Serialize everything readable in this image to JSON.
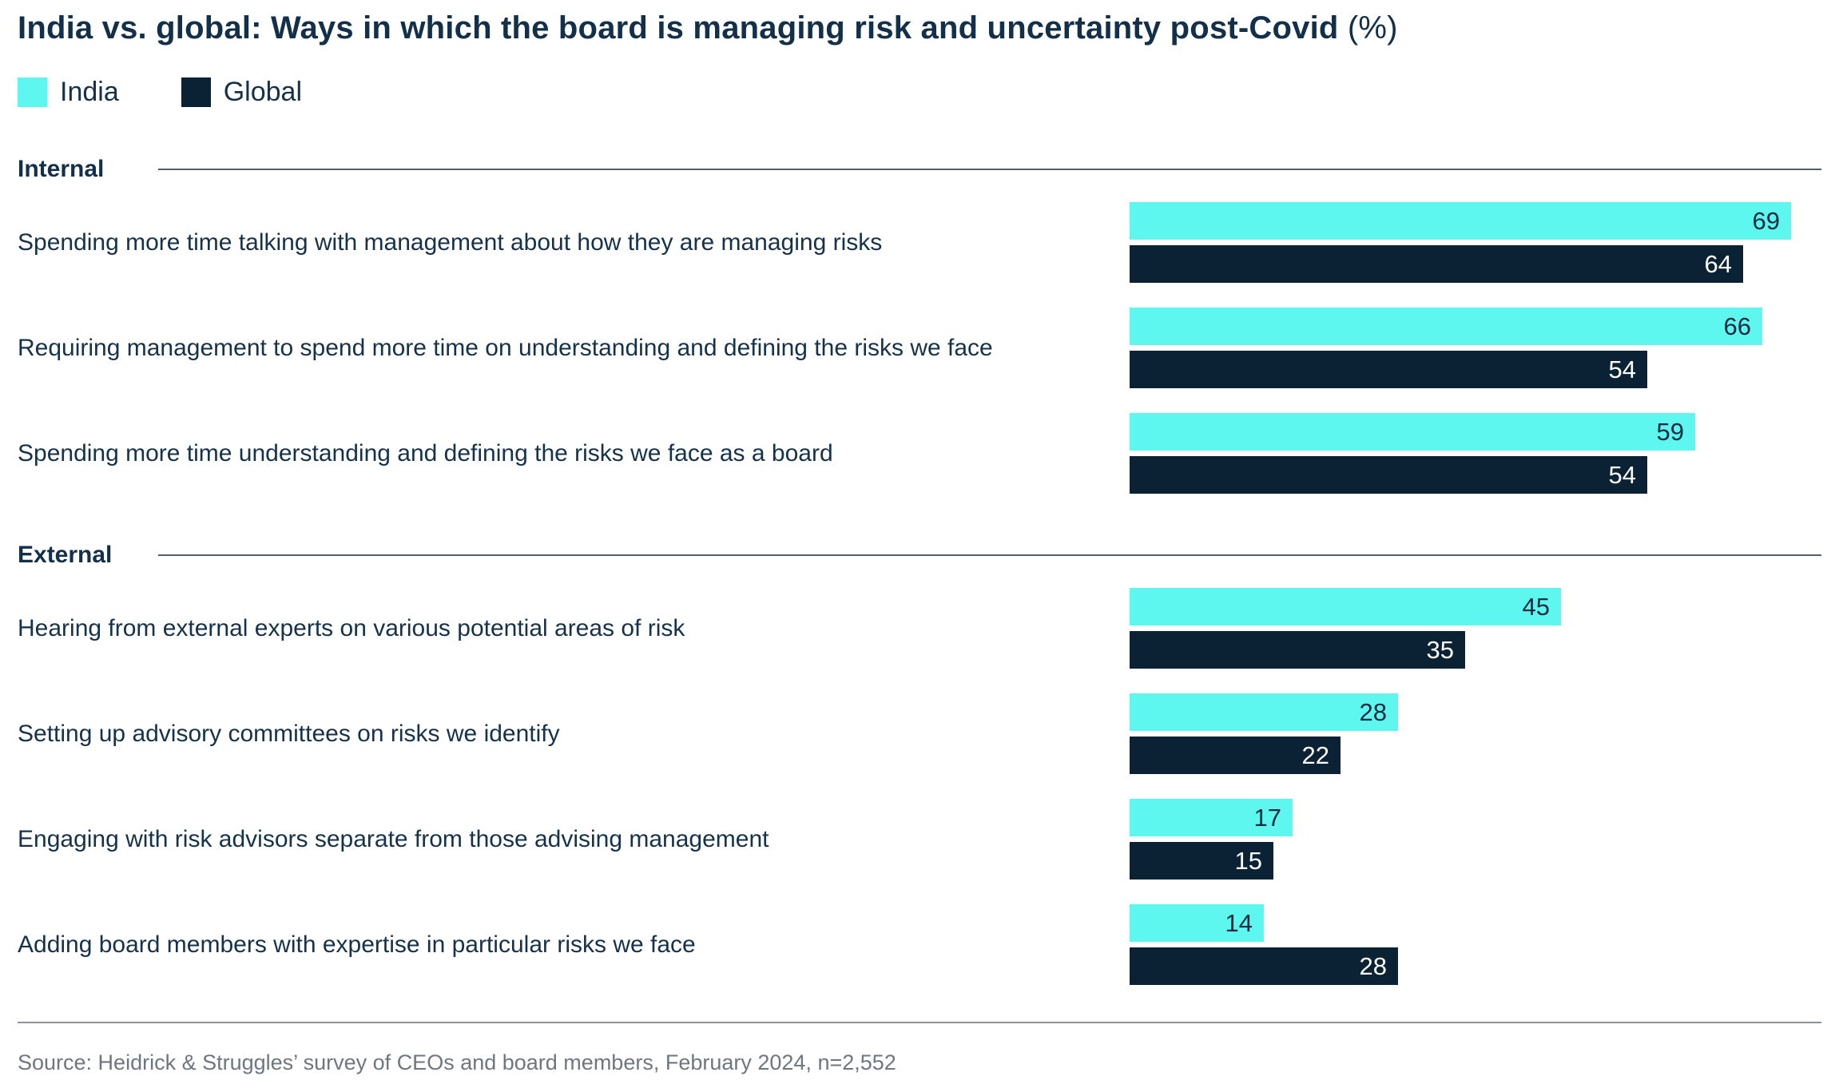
{
  "header": {
    "title": "India vs. global: Ways in which the board is managing risk and uncertainty post-Covid",
    "title_suffix": " (%)"
  },
  "legend": {
    "india_label": "India",
    "global_label": "Global"
  },
  "colors": {
    "india": "#5EF7F0",
    "global": "#0A2233",
    "title_navy": "#12304a",
    "india_value_text": "#0e2a40",
    "global_value_text": "#ffffff",
    "section_rule": "#555f69",
    "footer_rule": "#8b939b",
    "source_gray": "#6e7780"
  },
  "chart_data": {
    "type": "bar",
    "orientation": "horizontal",
    "unit": "%",
    "xlim": [
      0,
      69
    ],
    "grid": false,
    "legend_position": "top-left",
    "series_names": [
      "India",
      "Global"
    ],
    "title": "India vs. global: Ways in which the board is managing risk and uncertainty post-Covid (%)",
    "sections": [
      {
        "name": "Internal",
        "rows": [
          {
            "label": "Spending more time talking with management about how they are managing risks",
            "india": 69,
            "global": 64
          },
          {
            "label": "Requiring management to spend more time on understanding and defining the risks we face",
            "india": 66,
            "global": 54
          },
          {
            "label": "Spending more time understanding and defining the risks we face as a board",
            "india": 59,
            "global": 54
          }
        ]
      },
      {
        "name": "External",
        "rows": [
          {
            "label": "Hearing from external experts on various potential areas of risk",
            "india": 45,
            "global": 35
          },
          {
            "label": "Setting up advisory committees on risks we identify",
            "india": 28,
            "global": 22
          },
          {
            "label": "Engaging with risk advisors separate from those advising management",
            "india": 17,
            "global": 15
          },
          {
            "label": "Adding board members with expertise in particular risks we face",
            "india": 14,
            "global": 28
          }
        ]
      }
    ]
  },
  "footer": {
    "source": "Source: Heidrick & Struggles’ survey of CEOs and board members, February 2024, n=2,552"
  }
}
